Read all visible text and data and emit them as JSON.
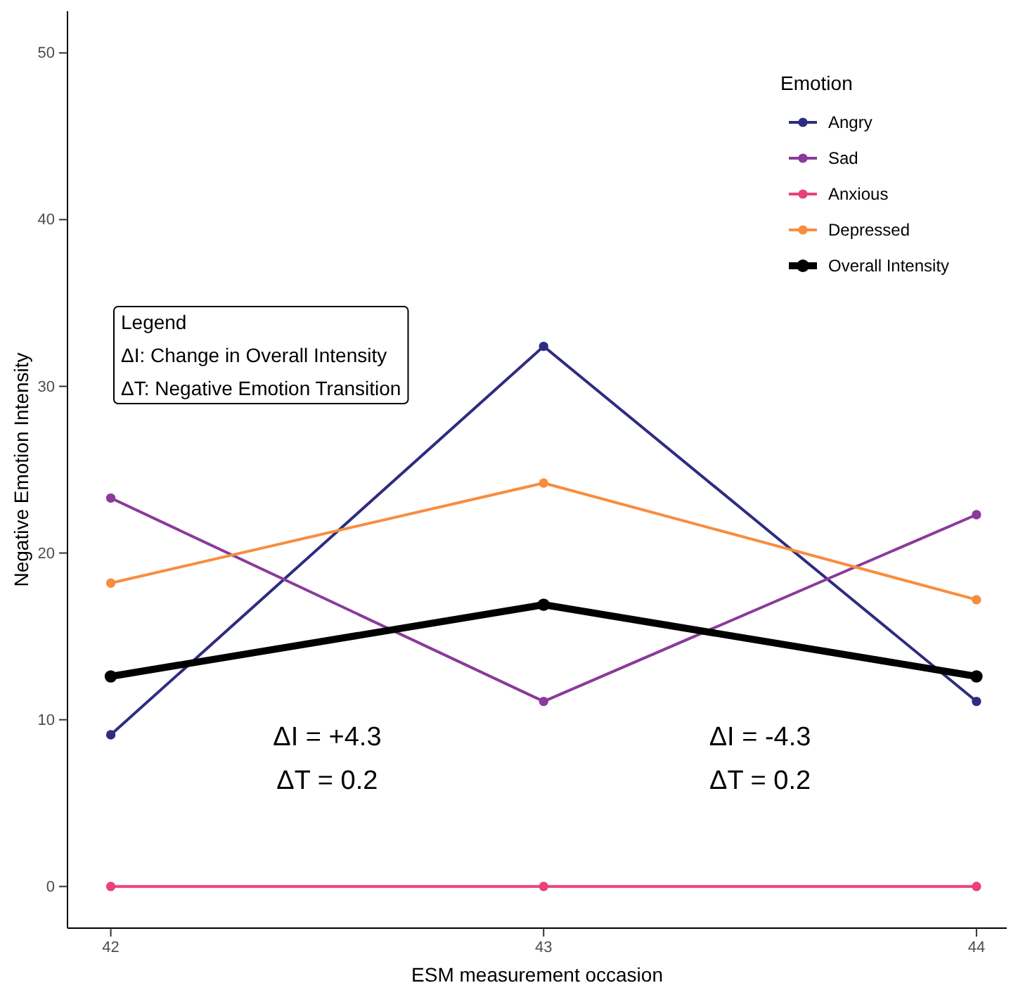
{
  "chart_data": {
    "type": "line",
    "xlabel": "ESM measurement occasion",
    "ylabel": "Negative Emotion Intensity",
    "legend_title": "Emotion",
    "x": [
      42,
      43,
      44
    ],
    "xlim": [
      41.9,
      44.07
    ],
    "xticks": [
      42,
      43,
      44
    ],
    "ylim": [
      -2.5,
      52.5
    ],
    "yticks": [
      0,
      10,
      20,
      30,
      40,
      50
    ],
    "grid": false,
    "legend": "top right",
    "marker": "circle",
    "line_style": "solid",
    "series": [
      {
        "name": "Angry",
        "color": "#2e2c80",
        "values": [
          9.1,
          32.4,
          11.1
        ]
      },
      {
        "name": "Sad",
        "color": "#8a3a9a",
        "values": [
          23.3,
          11.1,
          22.3
        ]
      },
      {
        "name": "Anxious",
        "color": "#ea4179",
        "values": [
          0,
          0,
          0
        ]
      },
      {
        "name": "Depressed",
        "color": "#f88d3e",
        "values": [
          18.2,
          24.2,
          17.2
        ]
      },
      {
        "name": "Overall Intensity",
        "color": "#000000",
        "values": [
          12.6,
          16.9,
          12.6
        ]
      }
    ],
    "annotations": [
      "Legend",
      "ΔI: Change in Overall Intensity",
      "ΔT: Negative Emotion Transition",
      "ΔI = +4.3",
      "ΔT = 0.2",
      "ΔI = -4.3",
      "ΔT = 0.2"
    ]
  }
}
